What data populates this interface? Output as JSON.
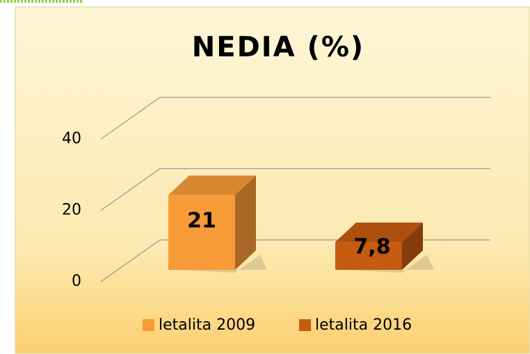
{
  "chart_data": {
    "type": "bar3d",
    "title": "NEDIA (%)",
    "categories": [
      null
    ],
    "series": [
      {
        "name": "letalita 2009",
        "color": "#f79a38",
        "values": [
          21
        ],
        "value_labels": [
          "21"
        ]
      },
      {
        "name": "letalita 2016",
        "color": "#c55a11",
        "values": [
          7.8
        ],
        "value_labels": [
          "7,8"
        ]
      }
    ],
    "ylim": [
      0,
      40
    ],
    "yticks": [
      0,
      20,
      40
    ],
    "grid": true
  }
}
